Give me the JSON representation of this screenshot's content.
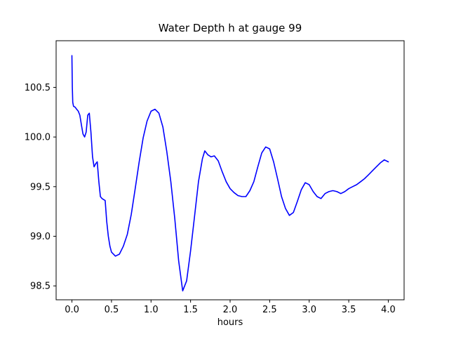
{
  "chart_data": {
    "type": "line",
    "title": "Water Depth h at gauge 99",
    "xlabel": "hours",
    "ylabel": "",
    "xlim": [
      -0.2,
      4.2
    ],
    "ylim": [
      98.36,
      100.97
    ],
    "x_ticks": [
      0.0,
      0.5,
      1.0,
      1.5,
      2.0,
      2.5,
      3.0,
      3.5,
      4.0
    ],
    "y_ticks": [
      98.5,
      99.0,
      99.5,
      100.0,
      100.5
    ],
    "grid": false,
    "legend": "none",
    "line_color": "#0000ff",
    "axis_color": "#000000",
    "series": [
      {
        "name": "h",
        "x": [
          0.0,
          0.005,
          0.01,
          0.02,
          0.04,
          0.06,
          0.08,
          0.1,
          0.12,
          0.14,
          0.16,
          0.18,
          0.2,
          0.22,
          0.24,
          0.26,
          0.28,
          0.3,
          0.32,
          0.34,
          0.36,
          0.38,
          0.4,
          0.42,
          0.44,
          0.46,
          0.48,
          0.5,
          0.55,
          0.6,
          0.65,
          0.7,
          0.75,
          0.8,
          0.85,
          0.9,
          0.95,
          1.0,
          1.05,
          1.1,
          1.15,
          1.2,
          1.25,
          1.3,
          1.35,
          1.4,
          1.45,
          1.5,
          1.55,
          1.6,
          1.65,
          1.68,
          1.72,
          1.76,
          1.8,
          1.85,
          1.9,
          1.95,
          2.0,
          2.05,
          2.1,
          2.15,
          2.2,
          2.25,
          2.3,
          2.35,
          2.4,
          2.45,
          2.5,
          2.55,
          2.6,
          2.65,
          2.7,
          2.75,
          2.8,
          2.85,
          2.9,
          2.95,
          3.0,
          3.05,
          3.1,
          3.15,
          3.2,
          3.25,
          3.3,
          3.35,
          3.4,
          3.45,
          3.5,
          3.55,
          3.6,
          3.65,
          3.7,
          3.75,
          3.8,
          3.85,
          3.9,
          3.95,
          4.0
        ],
        "y": [
          100.82,
          100.5,
          100.35,
          100.31,
          100.3,
          100.28,
          100.26,
          100.22,
          100.12,
          100.03,
          100.0,
          100.05,
          100.22,
          100.24,
          100.05,
          99.8,
          99.7,
          99.73,
          99.75,
          99.55,
          99.4,
          99.38,
          99.37,
          99.36,
          99.15,
          99.0,
          98.9,
          98.84,
          98.8,
          98.82,
          98.9,
          99.02,
          99.22,
          99.48,
          99.75,
          99.99,
          100.16,
          100.26,
          100.28,
          100.24,
          100.1,
          99.85,
          99.55,
          99.18,
          98.75,
          98.45,
          98.55,
          98.85,
          99.2,
          99.55,
          99.78,
          99.86,
          99.82,
          99.8,
          99.81,
          99.76,
          99.65,
          99.55,
          99.48,
          99.44,
          99.41,
          99.4,
          99.4,
          99.46,
          99.55,
          99.7,
          99.84,
          99.9,
          99.88,
          99.75,
          99.58,
          99.4,
          99.28,
          99.21,
          99.24,
          99.35,
          99.47,
          99.54,
          99.52,
          99.45,
          99.4,
          99.38,
          99.43,
          99.45,
          99.46,
          99.45,
          99.43,
          99.45,
          99.48,
          99.5,
          99.52,
          99.55,
          99.58,
          99.62,
          99.66,
          99.7,
          99.74,
          99.77,
          99.75
        ]
      }
    ]
  }
}
